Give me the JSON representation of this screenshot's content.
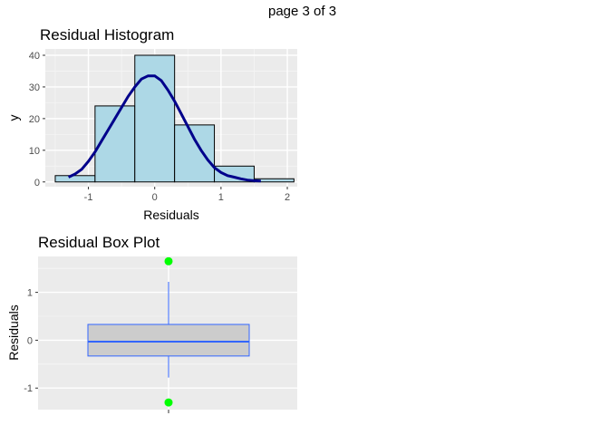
{
  "page": {
    "label": "page 3 of 3"
  },
  "chart_data": [
    {
      "type": "bar",
      "title": "Residual Histogram",
      "xlabel": "Residuals",
      "ylabel": "y",
      "xlim": [
        -1.65,
        2.15
      ],
      "ylim": [
        -1.5,
        42
      ],
      "x_ticks": [
        -1,
        0,
        1,
        2
      ],
      "y_ticks": [
        0,
        10,
        20,
        30,
        40
      ],
      "grid": true,
      "bar_fill": "#add8e6",
      "bar_stroke": "#000000",
      "bins": [
        {
          "x0": -1.5,
          "x1": -0.9,
          "count": 2
        },
        {
          "x0": -0.9,
          "x1": -0.3,
          "count": 24
        },
        {
          "x0": -0.3,
          "x1": 0.3,
          "count": 40
        },
        {
          "x0": 0.3,
          "x1": 0.9,
          "count": 18
        },
        {
          "x0": 0.9,
          "x1": 1.5,
          "count": 5
        },
        {
          "x0": 1.5,
          "x1": 2.1,
          "count": 1
        }
      ],
      "density_color": "#00008b",
      "density_curve": {
        "x": [
          -1.3,
          -1.2,
          -1.1,
          -1.0,
          -0.9,
          -0.8,
          -0.7,
          -0.6,
          -0.5,
          -0.4,
          -0.3,
          -0.2,
          -0.1,
          0.0,
          0.1,
          0.2,
          0.3,
          0.4,
          0.5,
          0.6,
          0.7,
          0.8,
          0.9,
          1.0,
          1.1,
          1.2,
          1.3,
          1.4,
          1.5,
          1.6
        ],
        "y": [
          1.5,
          2.5,
          4,
          6.5,
          9.5,
          13,
          16.5,
          20,
          23.5,
          27,
          30,
          32.5,
          33.5,
          33.5,
          32,
          29,
          25.5,
          21.5,
          17.5,
          13.5,
          10,
          7,
          4.5,
          3,
          2,
          1.5,
          1,
          0.6,
          0.4,
          0.3
        ]
      }
    },
    {
      "type": "box",
      "title": "Residual Box Plot",
      "ylabel": "Residuals",
      "xlabel": "",
      "ylim": [
        -1.45,
        1.75
      ],
      "y_ticks": [
        -1,
        0,
        1
      ],
      "grid": true,
      "box_fill": "#cccccc",
      "box_stroke": "#3366ff",
      "outlier_color": "#00ff00",
      "whisker_low": -0.78,
      "q1": -0.33,
      "median": -0.03,
      "q3": 0.33,
      "whisker_high": 1.22,
      "outliers": [
        1.65,
        -1.3
      ]
    }
  ]
}
